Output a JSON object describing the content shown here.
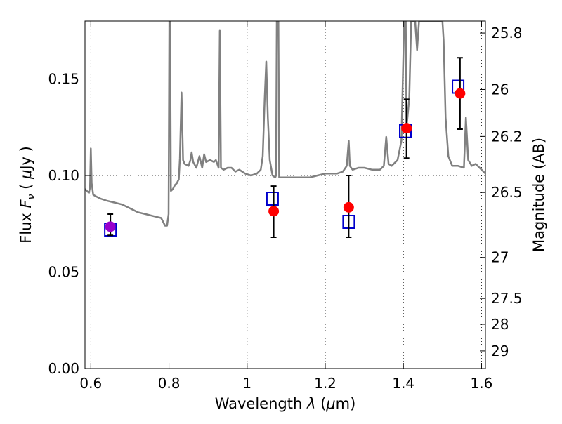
{
  "chart_data": {
    "type": "scatter",
    "title": "",
    "xlabel": "Wavelength  λ (μm)",
    "ylabel": "Flux  F_ν ( μJy )",
    "ylabel_parts": {
      "pre": "Flux  ",
      "sym": "F",
      "sub": "ν",
      "mid": "  ( ",
      "mu": "μ",
      "post": "Jy )"
    },
    "xlabel_parts": {
      "pre": "Wavelength  ",
      "sym": "λ",
      "mid": " (",
      "mu": "μ",
      "post": "m)"
    },
    "y2label": "Magnitude (AB)",
    "xlim": [
      0.585,
      1.61
    ],
    "ylim": [
      0.0,
      0.18
    ],
    "grid": true,
    "grid_style": "dotted",
    "x_ticks": [
      {
        "value": 0.6,
        "label": "0.6"
      },
      {
        "value": 0.8,
        "label": "0.8"
      },
      {
        "value": 1.0,
        "label": "1"
      },
      {
        "value": 1.2,
        "label": "1.2"
      },
      {
        "value": 1.4,
        "label": "1.4"
      },
      {
        "value": 1.6,
        "label": "1.6"
      }
    ],
    "y_ticks": [
      {
        "value": 0.0,
        "label": "0.00"
      },
      {
        "value": 0.05,
        "label": "0.05"
      },
      {
        "value": 0.1,
        "label": "0.10"
      },
      {
        "value": 0.15,
        "label": "0.15"
      }
    ],
    "y2_ticks": [
      {
        "mag": 25.8,
        "label": "25.8"
      },
      {
        "mag": 26.0,
        "label": "26"
      },
      {
        "mag": 26.2,
        "label": "26.2"
      },
      {
        "mag": 26.5,
        "label": "26.5"
      },
      {
        "mag": 27.0,
        "label": "27"
      },
      {
        "mag": 27.5,
        "label": "27.5"
      },
      {
        "mag": 28.0,
        "label": "28"
      },
      {
        "mag": 29.0,
        "label": "29"
      }
    ],
    "series": [
      {
        "kind": "model-spectrum",
        "color": "#808080",
        "points": [
          [
            0.585,
            0.093
          ],
          [
            0.59,
            0.092
          ],
          [
            0.595,
            0.091
          ],
          [
            0.598,
            0.094
          ],
          [
            0.6,
            0.114
          ],
          [
            0.602,
            0.096
          ],
          [
            0.606,
            0.09
          ],
          [
            0.615,
            0.089
          ],
          [
            0.625,
            0.088
          ],
          [
            0.64,
            0.087
          ],
          [
            0.66,
            0.086
          ],
          [
            0.68,
            0.085
          ],
          [
            0.7,
            0.083
          ],
          [
            0.72,
            0.081
          ],
          [
            0.74,
            0.08
          ],
          [
            0.76,
            0.079
          ],
          [
            0.78,
            0.078
          ],
          [
            0.79,
            0.074
          ],
          [
            0.795,
            0.074
          ],
          [
            0.799,
            0.08
          ],
          [
            0.801,
            0.18
          ],
          [
            0.803,
            0.18
          ],
          [
            0.805,
            0.092
          ],
          [
            0.81,
            0.093
          ],
          [
            0.815,
            0.095
          ],
          [
            0.82,
            0.096
          ],
          [
            0.825,
            0.098
          ],
          [
            0.828,
            0.109
          ],
          [
            0.832,
            0.143
          ],
          [
            0.836,
            0.108
          ],
          [
            0.84,
            0.106
          ],
          [
            0.85,
            0.105
          ],
          [
            0.855,
            0.108
          ],
          [
            0.858,
            0.112
          ],
          [
            0.862,
            0.107
          ],
          [
            0.87,
            0.104
          ],
          [
            0.878,
            0.11
          ],
          [
            0.885,
            0.104
          ],
          [
            0.89,
            0.111
          ],
          [
            0.895,
            0.107
          ],
          [
            0.905,
            0.108
          ],
          [
            0.915,
            0.107
          ],
          [
            0.92,
            0.108
          ],
          [
            0.927,
            0.104
          ],
          [
            0.93,
            0.175
          ],
          [
            0.933,
            0.104
          ],
          [
            0.94,
            0.103
          ],
          [
            0.95,
            0.104
          ],
          [
            0.96,
            0.104
          ],
          [
            0.97,
            0.102
          ],
          [
            0.98,
            0.103
          ],
          [
            0.995,
            0.101
          ],
          [
            1.01,
            0.1
          ],
          [
            1.025,
            0.101
          ],
          [
            1.035,
            0.103
          ],
          [
            1.04,
            0.11
          ],
          [
            1.045,
            0.14
          ],
          [
            1.049,
            0.159
          ],
          [
            1.053,
            0.13
          ],
          [
            1.058,
            0.108
          ],
          [
            1.065,
            0.1
          ],
          [
            1.072,
            0.099
          ],
          [
            1.074,
            0.1
          ],
          [
            1.076,
            0.18
          ],
          [
            1.08,
            0.18
          ],
          [
            1.082,
            0.099
          ],
          [
            1.1,
            0.099
          ],
          [
            1.12,
            0.099
          ],
          [
            1.14,
            0.099
          ],
          [
            1.16,
            0.099
          ],
          [
            1.18,
            0.1
          ],
          [
            1.2,
            0.101
          ],
          [
            1.23,
            0.101
          ],
          [
            1.245,
            0.102
          ],
          [
            1.255,
            0.105
          ],
          [
            1.26,
            0.118
          ],
          [
            1.263,
            0.105
          ],
          [
            1.27,
            0.103
          ],
          [
            1.285,
            0.104
          ],
          [
            1.3,
            0.104
          ],
          [
            1.32,
            0.103
          ],
          [
            1.34,
            0.103
          ],
          [
            1.35,
            0.105
          ],
          [
            1.356,
            0.12
          ],
          [
            1.362,
            0.106
          ],
          [
            1.37,
            0.105
          ],
          [
            1.385,
            0.108
          ],
          [
            1.395,
            0.118
          ],
          [
            1.402,
            0.18
          ],
          [
            1.406,
            0.18
          ],
          [
            1.408,
            0.125
          ],
          [
            1.415,
            0.14
          ],
          [
            1.42,
            0.18
          ],
          [
            1.43,
            0.18
          ],
          [
            1.435,
            0.165
          ],
          [
            1.44,
            0.18
          ],
          [
            1.45,
            0.18
          ],
          [
            1.49,
            0.18
          ],
          [
            1.5,
            0.18
          ],
          [
            1.503,
            0.17
          ],
          [
            1.508,
            0.13
          ],
          [
            1.515,
            0.11
          ],
          [
            1.525,
            0.105
          ],
          [
            1.54,
            0.105
          ],
          [
            1.555,
            0.104
          ],
          [
            1.56,
            0.13
          ],
          [
            1.566,
            0.108
          ],
          [
            1.575,
            0.105
          ],
          [
            1.585,
            0.106
          ],
          [
            1.595,
            0.104
          ],
          [
            1.605,
            0.102
          ],
          [
            1.61,
            0.101
          ]
        ]
      },
      {
        "kind": "model-photometry",
        "marker": "open-square",
        "color": "#0000cc",
        "points": [
          [
            0.65,
            0.072
          ],
          [
            1.065,
            0.088
          ],
          [
            1.26,
            0.076
          ],
          [
            1.405,
            0.123
          ],
          [
            1.54,
            0.146
          ]
        ]
      },
      {
        "kind": "observed-photometry",
        "marker": "filled-circle",
        "color": "#ff0000",
        "points": [
          {
            "x": 0.65,
            "y": 0.0735,
            "err_low": 0.0045,
            "err_high": 0.0065,
            "color": "#9900cc"
          },
          {
            "x": 1.068,
            "y": 0.0815,
            "err_low": 0.0135,
            "err_high": 0.013,
            "color": "#ff0000"
          },
          {
            "x": 1.26,
            "y": 0.0835,
            "err_low": 0.0155,
            "err_high": 0.0165,
            "color": "#ff0000"
          },
          {
            "x": 1.408,
            "y": 0.1245,
            "err_low": 0.0155,
            "err_high": 0.015,
            "color": "#ff0000"
          },
          {
            "x": 1.545,
            "y": 0.1425,
            "err_low": 0.0185,
            "err_high": 0.0185,
            "color": "#ff0000"
          }
        ]
      }
    ]
  }
}
